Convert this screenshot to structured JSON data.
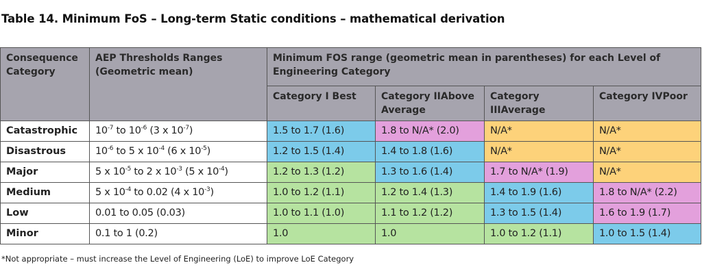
{
  "title": "Table 14. Minimum FoS – Long-term Static conditions – mathematical derivation",
  "headers": {
    "consequence": "Consequence Category",
    "aep": "AEP Thresholds Ranges (Geometric mean)",
    "fos": "Minimum FOS range (geometric mean in parentheses) for each Level of Engineering Category",
    "categories": [
      "Category I Best",
      "Category IIAbove Average",
      "Category IIIAverage",
      "Category IVPoor"
    ]
  },
  "colors": {
    "blue": "#7ccbea",
    "pink": "#e3a0dc",
    "orange": "#fdd27a",
    "green": "#b6e3a0",
    "header": "#a6a4ae"
  },
  "rows": [
    {
      "category": "Catastrophic",
      "aep": [
        {
          "t": "10"
        },
        {
          "s": "-7"
        },
        {
          "t": " to 10"
        },
        {
          "s": "-6"
        },
        {
          "t": " (3 x 10"
        },
        {
          "s": "-7"
        },
        {
          "t": ")"
        }
      ],
      "values": [
        {
          "v": "1.5 to 1.7 (1.6)",
          "c": "blue"
        },
        {
          "v": "1.8 to N/A* (2.0)",
          "c": "pink"
        },
        {
          "v": "N/A*",
          "c": "orange"
        },
        {
          "v": "N/A*",
          "c": "orange"
        }
      ]
    },
    {
      "category": "Disastrous",
      "aep": [
        {
          "t": "10"
        },
        {
          "s": "-6"
        },
        {
          "t": " to 5 x 10"
        },
        {
          "s": "-4"
        },
        {
          "t": " (6 x 10"
        },
        {
          "s": "-5"
        },
        {
          "t": ")"
        }
      ],
      "values": [
        {
          "v": "1.2 to 1.5 (1.4)",
          "c": "blue"
        },
        {
          "v": "1.4 to 1.8 (1.6)",
          "c": "blue"
        },
        {
          "v": "N/A*",
          "c": "orange"
        },
        {
          "v": "N/A*",
          "c": "orange"
        }
      ]
    },
    {
      "category": "Major",
      "aep": [
        {
          "t": "5 x 10"
        },
        {
          "s": "-5"
        },
        {
          "t": " to 2 x 10"
        },
        {
          "s": "-3"
        },
        {
          "t": " (5 x 10"
        },
        {
          "s": "-4"
        },
        {
          "t": ")"
        }
      ],
      "values": [
        {
          "v": "1.2 to 1.3 (1.2)",
          "c": "green"
        },
        {
          "v": "1.3 to 1.6 (1.4)",
          "c": "blue"
        },
        {
          "v": "1.7 to N/A* (1.9)",
          "c": "pink"
        },
        {
          "v": "N/A*",
          "c": "orange"
        }
      ]
    },
    {
      "category": "Medium",
      "aep": [
        {
          "t": "5 x 10"
        },
        {
          "s": "-4"
        },
        {
          "t": " to 0.02 (4 x 10"
        },
        {
          "s": "-3"
        },
        {
          "t": ")"
        }
      ],
      "values": [
        {
          "v": "1.0 to 1.2 (1.1)",
          "c": "green"
        },
        {
          "v": "1.2 to 1.4 (1.3)",
          "c": "green"
        },
        {
          "v": "1.4 to 1.9 (1.6)",
          "c": "blue"
        },
        {
          "v": "1.8 to N/A* (2.2)",
          "c": "pink"
        }
      ]
    },
    {
      "category": "Low",
      "aep": [
        {
          "t": "0.01 to 0.05 (0.03)"
        }
      ],
      "values": [
        {
          "v": "1.0 to 1.1 (1.0)",
          "c": "green"
        },
        {
          "v": "1.1 to 1.2 (1.2)",
          "c": "green"
        },
        {
          "v": "1.3 to 1.5 (1.4)",
          "c": "blue"
        },
        {
          "v": "1.6 to 1.9 (1.7)",
          "c": "pink"
        }
      ]
    },
    {
      "category": "Minor",
      "aep": [
        {
          "t": "0.1 to 1 (0.2)"
        }
      ],
      "values": [
        {
          "v": "1.0",
          "c": "green"
        },
        {
          "v": "1.0",
          "c": "green"
        },
        {
          "v": "1.0 to 1.2 (1.1)",
          "c": "green"
        },
        {
          "v": "1.0 to 1.5 (1.4)",
          "c": "blue"
        }
      ]
    }
  ],
  "footnote": "*Not appropriate – must increase the Level of Engineering (LoE) to improve LoE Category"
}
